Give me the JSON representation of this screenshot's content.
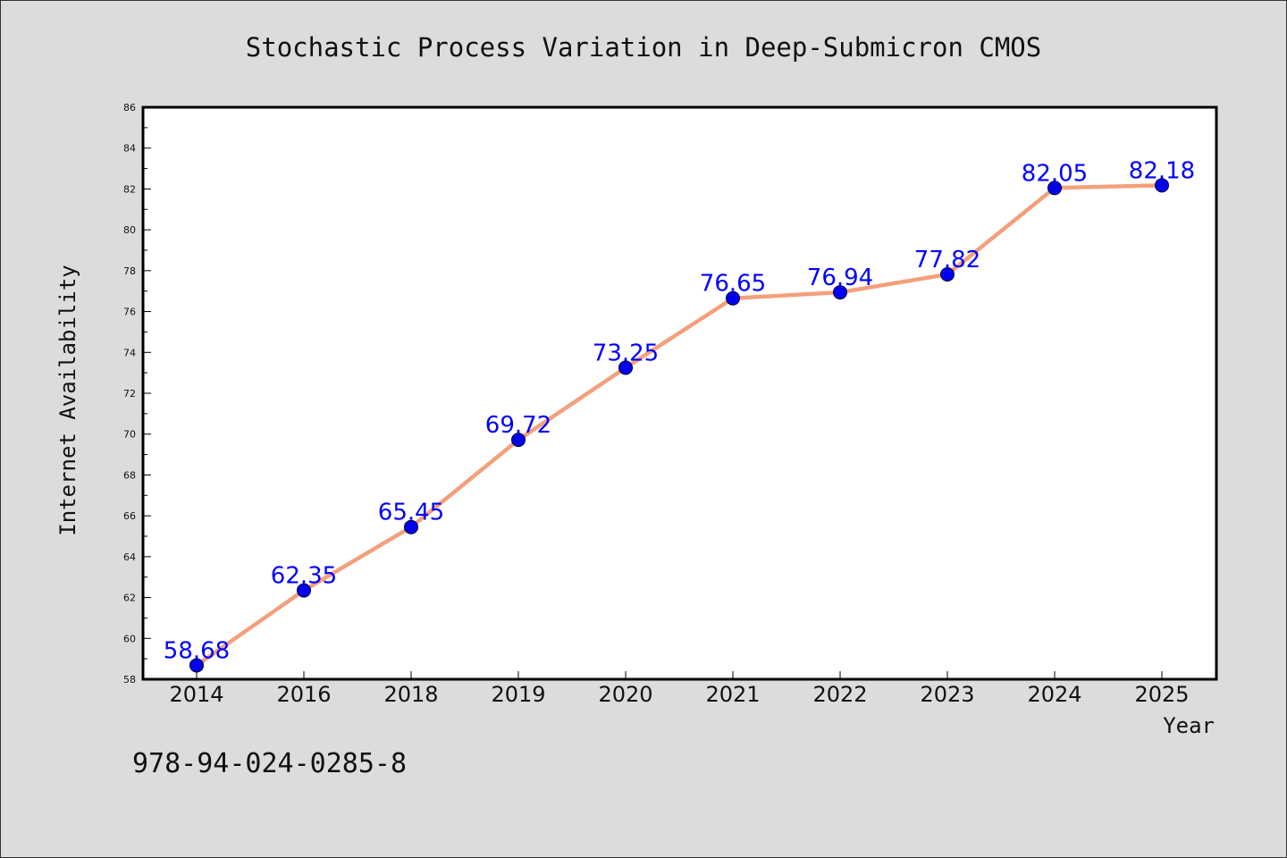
{
  "chart_data": {
    "type": "line",
    "title": "Stochastic Process Variation in Deep-Submicron CMOS",
    "xlabel": "Year",
    "ylabel": "Internet Availability",
    "categories": [
      "2014",
      "2016",
      "2018",
      "2019",
      "2020",
      "2021",
      "2022",
      "2023",
      "2024",
      "2025"
    ],
    "series": [
      {
        "values": [
          58.68,
          62.35,
          65.45,
          69.72,
          73.25,
          76.65,
          76.94,
          77.82,
          82.05,
          82.18
        ],
        "labels": [
          "58.68",
          "62.35",
          "65.45",
          "69.72",
          "73.25",
          "76.65",
          "76.94",
          "77.82",
          "82.05",
          "82.18"
        ]
      }
    ],
    "ylim": [
      58,
      86
    ],
    "yticks": [
      "58",
      "60",
      "62",
      "64",
      "66",
      "68",
      "70",
      "72",
      "74",
      "76",
      "78",
      "80",
      "82",
      "84",
      "86"
    ],
    "grid": false,
    "legend": "none",
    "line_color": "#f4a07c",
    "marker_color": "#0000ee",
    "label_color": "#0000ff"
  },
  "footer": {
    "isbn": "978-94-024-0285-8"
  }
}
